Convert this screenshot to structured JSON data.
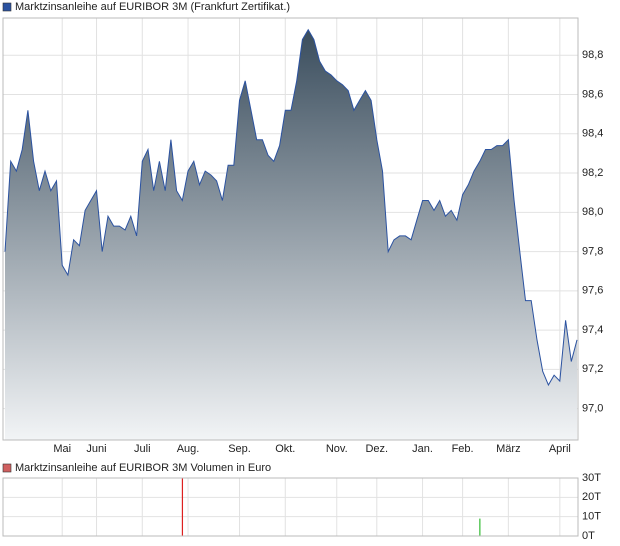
{
  "chart_data": [
    {
      "type": "area",
      "categories": [
        null,
        null,
        null,
        null,
        null,
        null,
        null,
        null,
        null,
        null,
        "Mai",
        null,
        null,
        null,
        null,
        null,
        "Juni",
        null,
        null,
        null,
        null,
        null,
        null,
        null,
        "Juli",
        null,
        null,
        null,
        null,
        null,
        null,
        null,
        "Aug.",
        null,
        null,
        null,
        null,
        null,
        null,
        null,
        null,
        "Sep.",
        null,
        null,
        null,
        null,
        null,
        null,
        null,
        "Okt.",
        null,
        null,
        null,
        null,
        null,
        null,
        null,
        null,
        "Nov.",
        null,
        null,
        null,
        null,
        null,
        null,
        "Dez.",
        null,
        null,
        null,
        null,
        null,
        null,
        null,
        "Jan.",
        null,
        null,
        null,
        null,
        null,
        null,
        "Feb.",
        null,
        null,
        null,
        null,
        null,
        null,
        null,
        "März",
        null,
        null,
        null,
        null,
        null,
        null,
        null,
        null,
        "April",
        null,
        null,
        null
      ],
      "series": [
        {
          "name": "Marktzinsanleihe auf EURIBOR 3M (Frankfurt Zertifikat.)",
          "color": "#2b52a0",
          "values": [
            97.8,
            98.26,
            98.21,
            98.32,
            98.52,
            98.26,
            98.11,
            98.21,
            98.11,
            98.16,
            97.73,
            97.68,
            97.86,
            97.83,
            98.01,
            98.06,
            98.11,
            97.8,
            97.98,
            97.93,
            97.93,
            97.91,
            97.98,
            97.88,
            98.26,
            98.32,
            98.11,
            98.26,
            98.11,
            98.37,
            98.11,
            98.06,
            98.21,
            98.26,
            98.14,
            98.21,
            98.19,
            98.16,
            98.06,
            98.24,
            98.24,
            98.57,
            98.67,
            98.52,
            98.37,
            98.37,
            98.29,
            98.26,
            98.34,
            98.52,
            98.52,
            98.67,
            98.88,
            98.93,
            98.88,
            98.77,
            98.72,
            98.7,
            98.67,
            98.65,
            98.62,
            98.52,
            98.57,
            98.62,
            98.57,
            98.37,
            98.21,
            97.8,
            97.86,
            97.88,
            97.88,
            97.86,
            97.96,
            98.06,
            98.06,
            98.01,
            98.06,
            97.98,
            98.01,
            97.96,
            98.09,
            98.14,
            98.21,
            98.26,
            98.32,
            98.32,
            98.34,
            98.34,
            98.37,
            98.06,
            97.8,
            97.55,
            97.55,
            97.35,
            97.19,
            97.12,
            97.17,
            97.14,
            97.45,
            97.24,
            97.35
          ]
        }
      ],
      "ylim": [
        96.84,
        98.99
      ],
      "yticks": [
        {
          "value": 97.0,
          "label": "97,0"
        },
        {
          "value": 97.2,
          "label": "97,2"
        },
        {
          "value": 97.4,
          "label": "97,4"
        },
        {
          "value": 97.6,
          "label": "97,6"
        },
        {
          "value": 97.8,
          "label": "97,8"
        },
        {
          "value": 98.0,
          "label": "98,0"
        },
        {
          "value": 98.2,
          "label": "98,2"
        },
        {
          "value": 98.4,
          "label": "98,4"
        },
        {
          "value": 98.6,
          "label": "98,6"
        },
        {
          "value": 98.8,
          "label": "98,8"
        }
      ],
      "grid": true,
      "legend": "top-left"
    },
    {
      "type": "bar",
      "series": [
        {
          "name": "Marktzinsanleihe auf EURIBOR 3M Volumen in Euro",
          "color": "#d06060",
          "values": [
            null,
            null,
            null,
            null,
            null,
            null,
            null,
            null,
            null,
            null,
            null,
            null,
            null,
            null,
            null,
            null,
            null,
            null,
            null,
            null,
            null,
            null,
            null,
            null,
            null,
            null,
            null,
            null,
            null,
            null,
            null,
            30000,
            null,
            null,
            null,
            null,
            null,
            null,
            null,
            null,
            null,
            null,
            null,
            null,
            null,
            null,
            null,
            null,
            null,
            null,
            null,
            null,
            null,
            null,
            null,
            null,
            null,
            null,
            null,
            null,
            null,
            null,
            null,
            null,
            null,
            null,
            null,
            null,
            null,
            null,
            null,
            null,
            null,
            null,
            null,
            null,
            null,
            null,
            null,
            null,
            null,
            null,
            null,
            9000,
            null,
            null,
            null,
            null,
            null,
            null,
            null,
            null,
            null,
            null,
            null,
            null,
            null,
            null,
            null,
            null,
            null
          ]
        }
      ],
      "ylim": [
        0,
        30000
      ],
      "yticks": [
        {
          "value": 0,
          "label": "0T"
        },
        {
          "value": 10000,
          "label": "10T"
        },
        {
          "value": 20000,
          "label": "20T"
        },
        {
          "value": 30000,
          "label": "30T"
        }
      ],
      "up_color": "#33bb33",
      "down_color": "#dd2020",
      "grid": true,
      "legend": "top-left"
    }
  ]
}
